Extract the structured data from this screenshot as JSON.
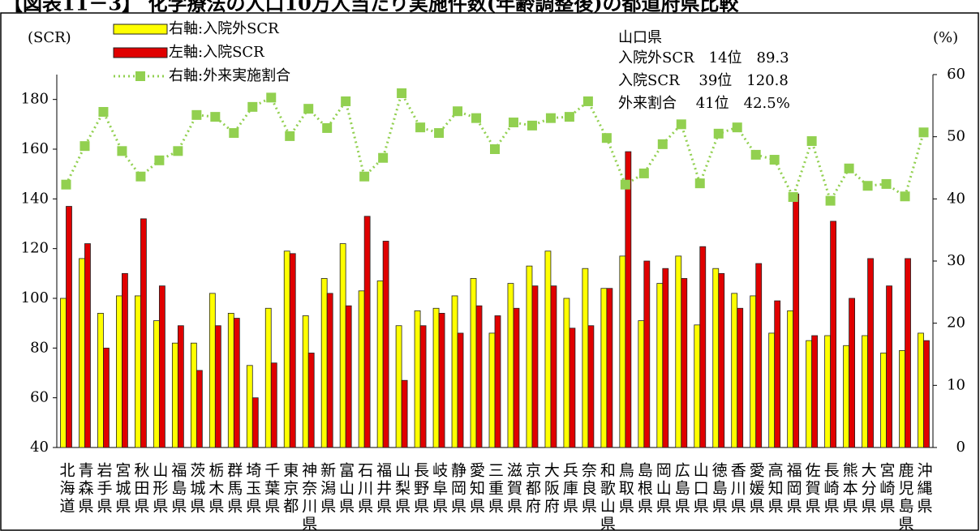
{
  "chart_data": {
    "type": "bar_line",
    "title": "【図表11－3】 化学療法の人口10万人当たり実施件数(年齢調整後)の都道府県比較",
    "y_label": "(SCR)",
    "y2_label": "(%)",
    "annotations": [
      "山口県",
      "入院外SCR　14位　89.3",
      "入院SCR　 39位　120.8",
      "外来割合　 41位　42.5%"
    ],
    "categories": [
      "北海道",
      "青森県",
      "岩手県",
      "宮城県",
      "秋田県",
      "山形県",
      "福島県",
      "茨城県",
      "栃木県",
      "群馬県",
      "埼玉県",
      "千葉県",
      "東京都",
      "神奈川県",
      "新潟県",
      "富山県",
      "石川県",
      "福井県",
      "山梨県",
      "長野県",
      "岐阜県",
      "静岡県",
      "愛知県",
      "三重県",
      "滋賀県",
      "京都府",
      "大阪府",
      "兵庫県",
      "奈良県",
      "和歌山県",
      "鳥取県",
      "島根県",
      "岡山県",
      "広島県",
      "山口県",
      "徳島県",
      "香川県",
      "愛媛県",
      "高知県",
      "福岡県",
      "佐賀県",
      "長崎県",
      "熊本県",
      "大分県",
      "宮崎県",
      "鹿児島県",
      "沖縄県"
    ],
    "series": [
      {
        "name": "右軸:入院外SCR",
        "color": "#ffff00",
        "kind": "bar",
        "values": [
          100,
          116,
          94,
          101,
          101,
          91,
          82,
          82,
          102,
          94,
          73,
          96,
          119,
          93,
          108,
          122,
          103,
          107,
          89,
          95,
          96,
          101,
          108,
          86,
          106,
          113,
          119,
          100,
          112,
          104,
          117,
          91,
          106,
          117,
          89.3,
          112,
          102,
          101,
          86,
          95,
          83,
          85,
          81,
          85,
          78,
          79,
          86
        ]
      },
      {
        "name": "左軸:入院SCR",
        "color": "#e00000",
        "kind": "bar",
        "values": [
          137,
          122,
          80,
          110,
          132,
          105,
          89,
          71,
          89,
          92,
          60,
          74,
          118,
          78,
          102,
          97,
          133,
          123,
          67,
          89,
          94,
          86,
          97,
          93,
          96,
          105,
          105,
          88,
          89,
          104,
          159,
          115,
          112,
          108,
          120.8,
          110,
          96,
          114,
          99,
          142,
          85,
          131,
          100,
          116,
          105,
          116,
          83
        ]
      },
      {
        "name": "右軸:外来実施割合",
        "color": "#92d050",
        "kind": "line",
        "axis": "y2",
        "values": [
          42.3,
          48.5,
          54,
          47.7,
          43.6,
          46.2,
          47.7,
          53.5,
          53.2,
          50.6,
          54.8,
          56.3,
          50.1,
          54.5,
          51.4,
          55.7,
          43.6,
          46.6,
          57,
          51.5,
          50.6,
          54.1,
          53,
          48,
          52.3,
          51.8,
          53,
          53.2,
          55.7,
          49.8,
          42.3,
          44.1,
          48.8,
          52,
          42.5,
          50.5,
          51.5,
          47.1,
          46.3,
          40.3,
          49.3,
          39.7,
          44.9,
          42.1,
          42.4,
          40.4,
          50.7
        ]
      }
    ],
    "ylim": [
      40,
      190
    ],
    "yticks": [
      40,
      60,
      80,
      100,
      120,
      140,
      160,
      180
    ],
    "y2lim": [
      0,
      60
    ],
    "y2ticks": [
      0,
      10,
      20,
      30,
      40,
      50,
      60
    ]
  }
}
